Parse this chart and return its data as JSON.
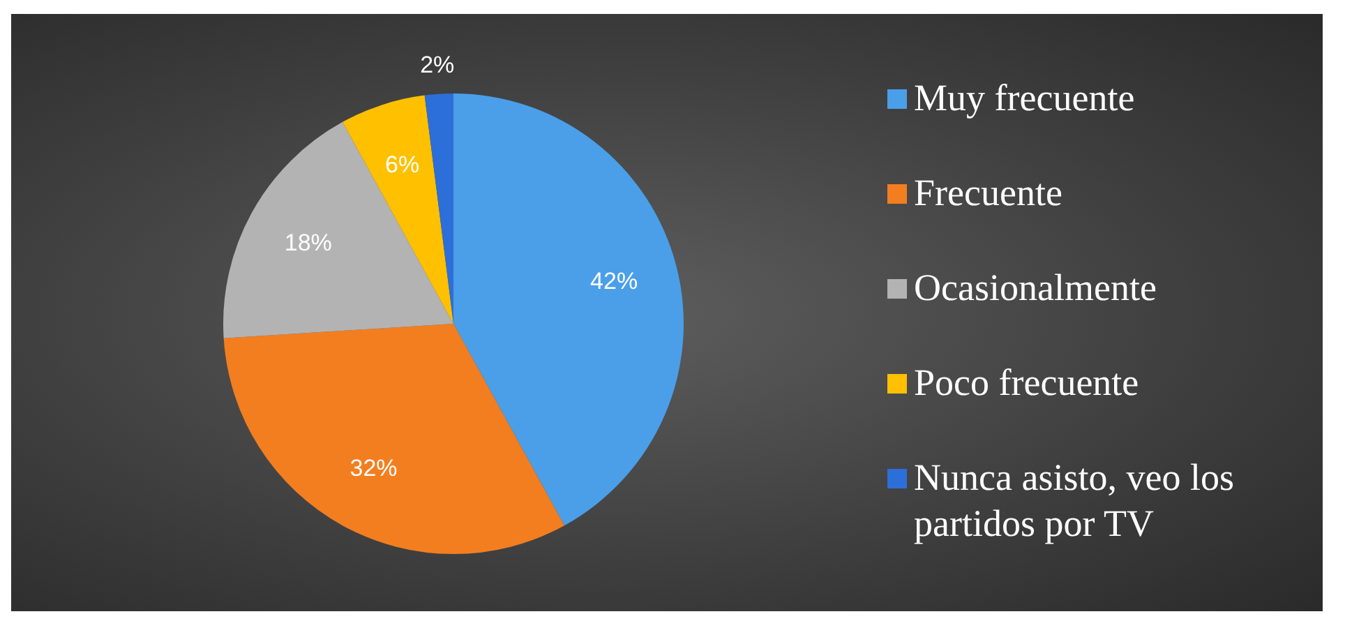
{
  "chart_data": {
    "type": "pie",
    "categories": [
      "Muy frecuente",
      "Frecuente",
      "Ocasionalmente",
      "Poco frecuente",
      "Nunca asisto, veo los partidos por TV"
    ],
    "values": [
      42,
      32,
      18,
      6,
      2
    ],
    "colors": [
      "#4a9fe8",
      "#f37e1f",
      "#b3b3b3",
      "#ffc000",
      "#2d6fd8"
    ],
    "value_labels": [
      "42%",
      "32%",
      "18%",
      "6%",
      "2%"
    ],
    "legend": "right"
  }
}
